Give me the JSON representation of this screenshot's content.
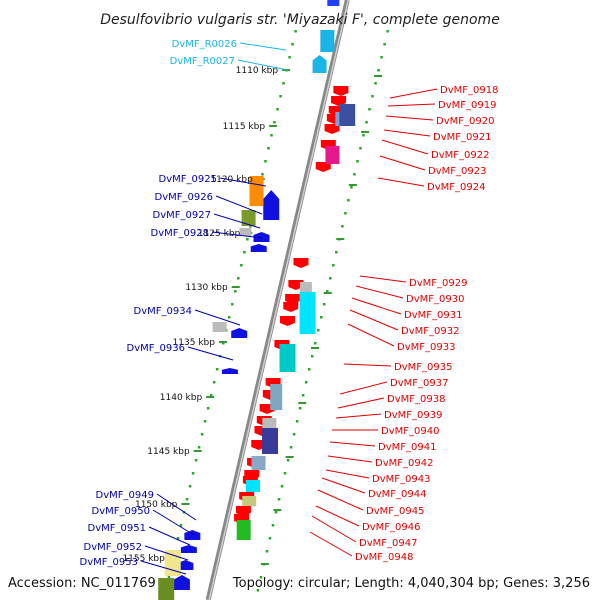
{
  "title": "Desulfovibrio vulgaris str. 'Miyazaki F', complete genome",
  "footer": {
    "accession": "Accession: NC_011769",
    "stats": "Topology: circular; Length: 4,040,304 bp; Genes: 3,256"
  },
  "colors": {
    "rna_label": "#1ab4e6",
    "reverse_label": "#0000aa",
    "forward_label": "#e00000",
    "backbone": "#999999",
    "tick": "#339933",
    "dot_track": "#22aa22"
  },
  "scale_labels": [
    "1110 kbp",
    "1115 kbp",
    "1120 kbp",
    "1125 kbp",
    "1130 kbp",
    "1135 kbp",
    "1140 kbp",
    "1145 kbp",
    "1150 kbp",
    "1155 kbp"
  ],
  "rna_genes": [
    "DvMF_R0026",
    "DvMF_R0027"
  ],
  "reverse_genes": [
    "DvMF_0925",
    "DvMF_0926",
    "DvMF_0927",
    "DvMF_0928",
    "DvMF_0934",
    "DvMF_0936",
    "DvMF_0949",
    "DvMF_0950",
    "DvMF_0951",
    "DvMF_0952",
    "DvMF_0953"
  ],
  "forward_genes": [
    "DvMF_0918",
    "DvMF_0919",
    "DvMF_0920",
    "DvMF_0921",
    "DvMF_0922",
    "DvMF_0923",
    "DvMF_0924",
    "DvMF_0929",
    "DvMF_0930",
    "DvMF_0931",
    "DvMF_0932",
    "DvMF_0933",
    "DvMF_0935",
    "DvMF_0937",
    "DvMF_0938",
    "DvMF_0939",
    "DvMF_0940",
    "DvMF_0941",
    "DvMF_0942",
    "DvMF_0943",
    "DvMF_0944",
    "DvMF_0945",
    "DvMF_0946",
    "DvMF_0947",
    "DvMF_0948"
  ]
}
